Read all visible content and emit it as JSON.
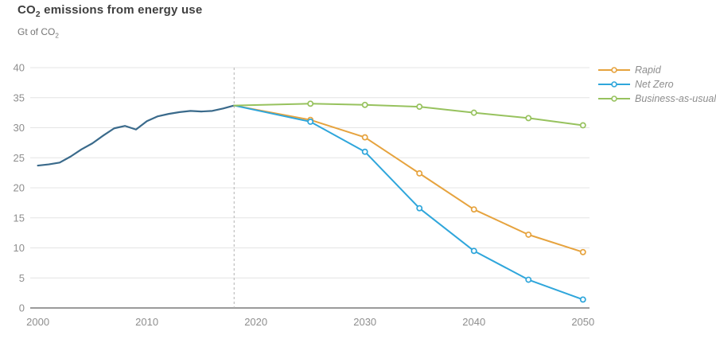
{
  "header": {
    "title": {
      "prefix": "CO",
      "sub": "2",
      "rest": " emissions from energy use"
    },
    "subtitle": {
      "prefix": "Gt of CO",
      "sub": "2"
    }
  },
  "chart_data": {
    "type": "line",
    "title": "CO₂ emissions from energy use",
    "ylabel": "Gt of CO₂",
    "xlabel": "",
    "ylim": [
      0,
      40
    ],
    "xlim": [
      1999.3,
      2050.6
    ],
    "yticks": [
      0,
      5,
      10,
      15,
      20,
      25,
      30,
      35,
      40
    ],
    "xticks": [
      2000,
      2010,
      2020,
      2030,
      2040,
      2050
    ],
    "grid": "horizontal",
    "legend_position": "top-right",
    "divider_year": 2018,
    "history": {
      "color": "#3a6a8b",
      "years": [
        2000,
        2001,
        2002,
        2003,
        2004,
        2005,
        2006,
        2007,
        2008,
        2009,
        2010,
        2011,
        2012,
        2013,
        2014,
        2015,
        2016,
        2017,
        2018
      ],
      "values": [
        23.7,
        23.9,
        24.2,
        25.2,
        26.4,
        27.4,
        28.7,
        29.9,
        30.3,
        29.7,
        31.1,
        31.9,
        32.3,
        32.6,
        32.8,
        32.7,
        32.8,
        33.2,
        33.7
      ]
    },
    "series": [
      {
        "name": "Rapid",
        "color": "#e6a33e",
        "years": [
          2018,
          2025,
          2030,
          2035,
          2040,
          2045,
          2050
        ],
        "values": [
          33.7,
          31.3,
          28.4,
          22.4,
          16.4,
          12.2,
          9.3
        ],
        "marker_from": 2025
      },
      {
        "name": "Net Zero",
        "color": "#2fa6db",
        "years": [
          2018,
          2025,
          2030,
          2035,
          2040,
          2045,
          2050
        ],
        "values": [
          33.7,
          31.0,
          26.0,
          16.6,
          9.5,
          4.7,
          1.4
        ],
        "marker_from": 2025
      },
      {
        "name": "Business-as-usual",
        "color": "#97c25e",
        "years": [
          2018,
          2025,
          2030,
          2035,
          2040,
          2045,
          2050
        ],
        "values": [
          33.7,
          34.0,
          33.8,
          33.5,
          32.5,
          31.6,
          30.4
        ],
        "marker_from": 2025
      }
    ],
    "style": {
      "grid_color": "#e4e4e4",
      "axis_color": "#9b9b9b",
      "divider_color": "#b3b3b3",
      "tick_text_color": "#8e8e8e"
    }
  }
}
